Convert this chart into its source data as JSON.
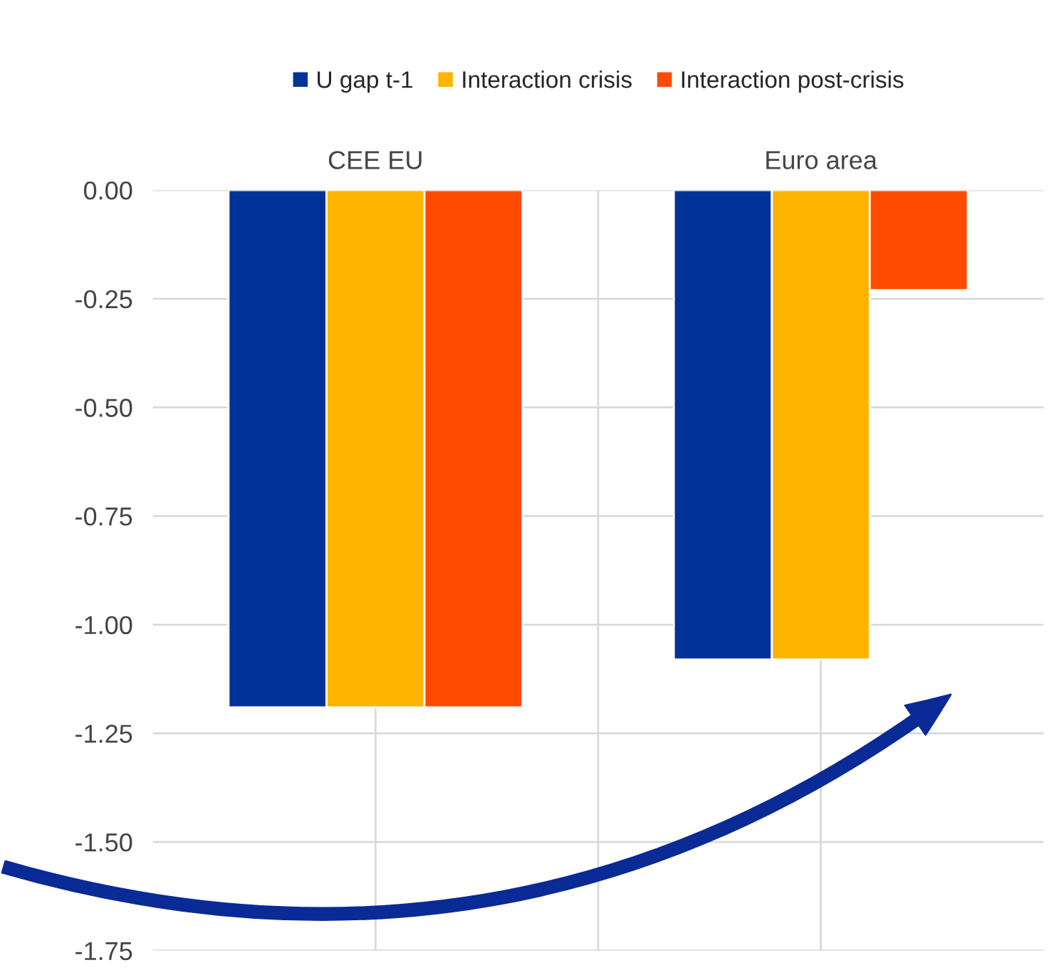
{
  "chart_data": {
    "type": "bar",
    "categories": [
      "CEE EU",
      "Euro area"
    ],
    "series": [
      {
        "name": "U gap t-1",
        "color": "#003299",
        "values": [
          -1.19,
          -1.08
        ]
      },
      {
        "name": "Interaction crisis",
        "color": "#ffb400",
        "values": [
          -1.19,
          -1.08
        ]
      },
      {
        "name": "Interaction post-crisis",
        "color": "#ff4b00",
        "values": [
          -1.19,
          -0.23
        ]
      }
    ],
    "ylim": [
      -1.75,
      0.0
    ],
    "yticks": [
      {
        "value": 0,
        "label": "0.00"
      },
      {
        "value": -0.25,
        "label": "-0.25"
      },
      {
        "value": -0.5,
        "label": "-0.50"
      },
      {
        "value": -0.75,
        "label": "-0.75"
      },
      {
        "value": -1.0,
        "label": "-1.00"
      },
      {
        "value": -1.25,
        "label": "-1.25"
      },
      {
        "value": -1.5,
        "label": "-1.50"
      },
      {
        "value": -1.75,
        "label": "-1.75"
      }
    ],
    "grid": true,
    "legend": "top"
  }
}
